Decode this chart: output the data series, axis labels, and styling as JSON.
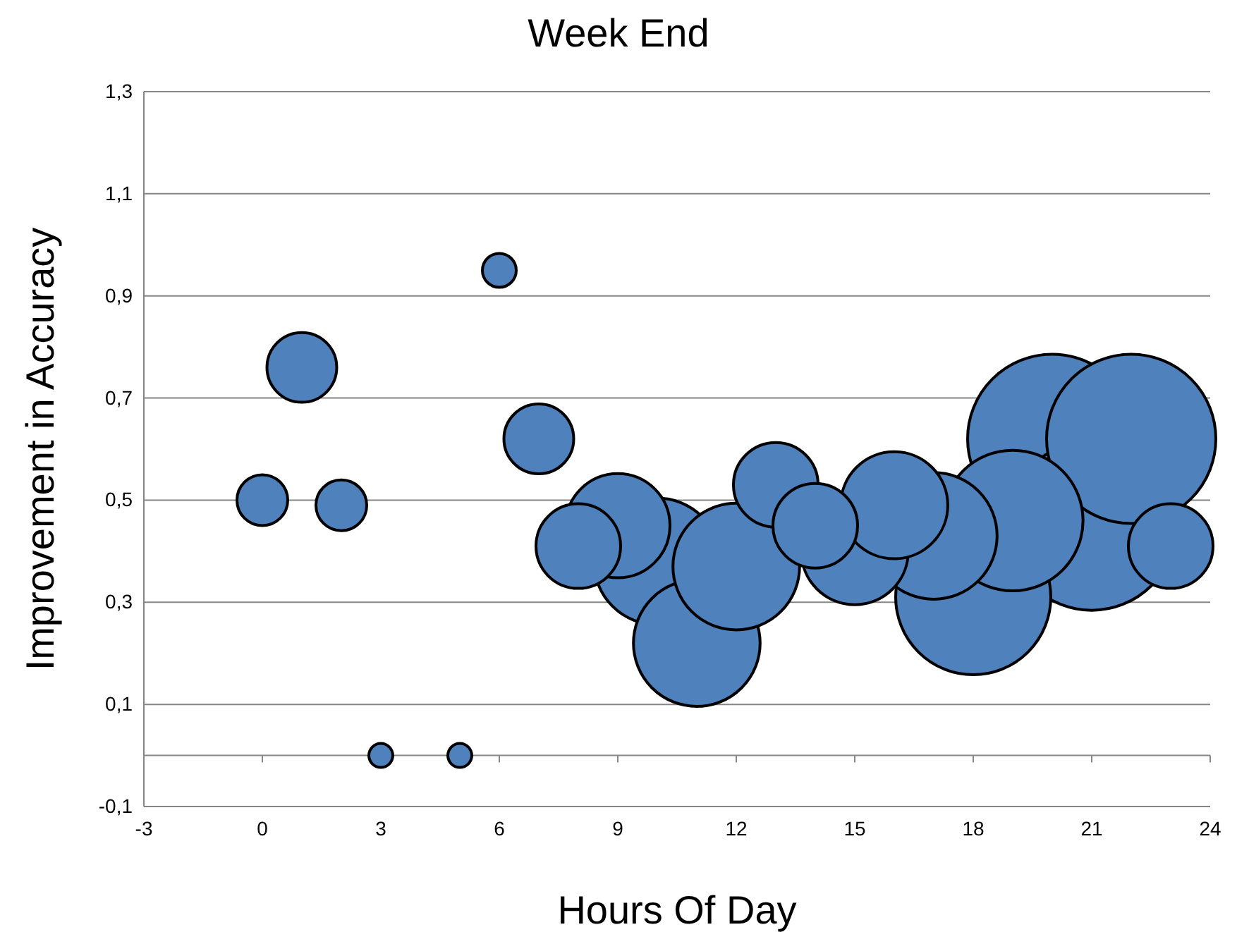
{
  "chart_data": {
    "type": "bubble",
    "title": "Week End",
    "xlabel": "Hours Of Day",
    "ylabel": "Improvement in Accuracy",
    "x": [
      0,
      1,
      2,
      3,
      5,
      6,
      7,
      8,
      9,
      10,
      11,
      12,
      13,
      14,
      15,
      16,
      17,
      18,
      19,
      20,
      21,
      22,
      23
    ],
    "values": [
      0.5,
      0.76,
      0.49,
      0.0,
      0.0,
      0.95,
      0.62,
      0.41,
      0.45,
      0.38,
      0.22,
      0.37,
      0.53,
      0.45,
      0.4,
      0.49,
      0.43,
      0.31,
      0.46,
      0.62,
      0.45,
      0.62,
      0.41
    ],
    "sizes": [
      0.09,
      0.17,
      0.09,
      0.02,
      0.02,
      0.04,
      0.17,
      0.25,
      0.38,
      0.56,
      0.56,
      0.56,
      0.25,
      0.25,
      0.4,
      0.4,
      0.56,
      0.84,
      0.69,
      1,
      1,
      1,
      0.25
    ],
    "color": "#4f81bd",
    "xlim": [
      -3,
      24
    ],
    "xticks": [
      -3,
      0,
      3,
      6,
      9,
      12,
      15,
      18,
      21,
      24
    ],
    "ylim": [
      -0.1,
      1.3
    ],
    "yticks": [
      {
        "value": -0.1,
        "label": "-0,1"
      },
      {
        "value": 0.1,
        "label": "0,1"
      },
      {
        "value": 0.3,
        "label": "0,3"
      },
      {
        "value": 0.5,
        "label": "0,5"
      },
      {
        "value": 0.7,
        "label": "0,7"
      },
      {
        "value": 0.9,
        "label": "0,9"
      },
      {
        "value": 1.1,
        "label": "1,1"
      },
      {
        "value": 1.3,
        "label": "1,3"
      }
    ],
    "grid": "y"
  }
}
